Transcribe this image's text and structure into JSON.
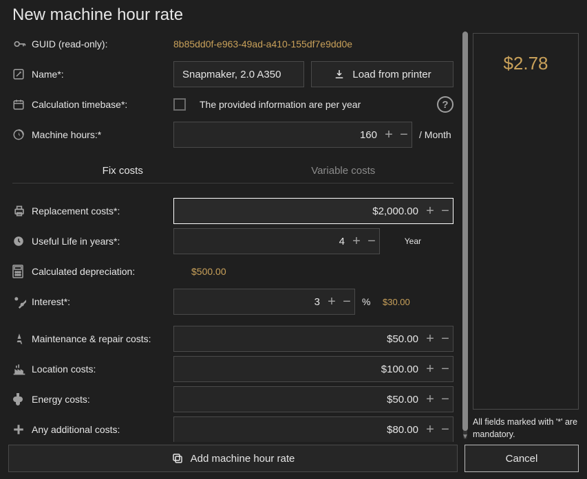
{
  "header": {
    "title": "New machine hour rate"
  },
  "form": {
    "guid": {
      "label": "GUID (read-only):",
      "value": "8b85dd0f-e963-49ad-a410-155df7e9dd0e"
    },
    "name": {
      "label": "Name*:",
      "value": "Snapmaker, 2.0 A350"
    },
    "load_btn": "Load from printer",
    "timebase": {
      "label": "Calculation timebase*:",
      "checkbox_label": "The provided information are per year"
    },
    "machine_hours": {
      "label": "Machine hours:*",
      "value": "160",
      "unit": "/ Month"
    }
  },
  "tabs": {
    "fix": "Fix costs",
    "variable": "Variable costs"
  },
  "fix": {
    "replacement": {
      "label": "Replacement costs*:",
      "value": "$2,000.00"
    },
    "useful_life": {
      "label": "Useful Life in years*:",
      "value": "4",
      "unit": "Year"
    },
    "depreciation": {
      "label": "Calculated depreciation:",
      "value": "$500.00"
    },
    "interest": {
      "label": "Interest*:",
      "value": "3",
      "unit": "%",
      "computed": "$30.00"
    },
    "maintenance": {
      "label": "Maintenance & repair costs:",
      "value": "$50.00"
    },
    "location": {
      "label": "Location costs:",
      "value": "$100.00"
    },
    "energy": {
      "label": "Energy costs:",
      "value": "$50.00"
    },
    "additional": {
      "label": "Any additional costs:",
      "value": "$80.00"
    }
  },
  "result": {
    "value": "$2.78"
  },
  "mandatory_note": "All fields marked with '*' are mandatory.",
  "footer": {
    "add": "Add machine hour rate",
    "cancel": "Cancel"
  },
  "style": {
    "colors": {
      "bg": "#1f1f1f",
      "border": "#4a4a4a",
      "text": "#e6e6e6",
      "text_muted": "#8b8b8b",
      "accent": "#c9a15a",
      "input_bg": "#262626",
      "scrollbar": "#888888"
    },
    "scrollbar": {
      "thumb_top_pct": 0,
      "thumb_height_pct": 98
    }
  }
}
